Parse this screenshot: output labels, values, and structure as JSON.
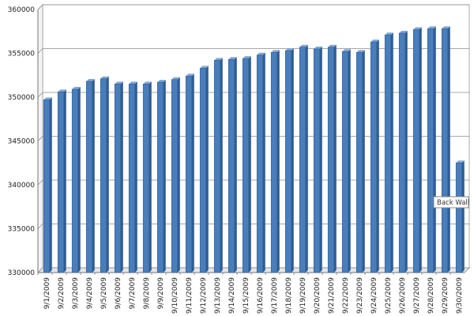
{
  "chart_data": {
    "type": "bar",
    "title": "",
    "xlabel": "",
    "ylabel": "",
    "categories": [
      "9/1/2009",
      "9/2/2009",
      "9/3/2009",
      "9/4/2009",
      "9/5/2009",
      "9/6/2009",
      "9/7/2009",
      "9/8/2009",
      "9/9/2009",
      "9/10/2009",
      "9/11/2009",
      "9/12/2009",
      "9/13/2009",
      "9/14/2009",
      "9/15/2009",
      "9/16/2009",
      "9/17/2009",
      "9/18/2009",
      "9/19/2009",
      "9/20/2009",
      "9/21/2009",
      "9/22/2009",
      "9/23/2009",
      "9/24/2009",
      "9/25/2009",
      "9/26/2009",
      "9/27/2009",
      "9/28/2009",
      "9/29/2009",
      "9/30/2009"
    ],
    "values": [
      349700,
      350600,
      350900,
      351800,
      352100,
      351500,
      351500,
      351500,
      351700,
      352000,
      352400,
      353300,
      354200,
      354300,
      354400,
      354800,
      355100,
      355300,
      355700,
      355500,
      355700,
      355200,
      355100,
      356300,
      357100,
      357300,
      357700,
      357800,
      357800,
      342500
    ],
    "ylim": [
      330000,
      360000
    ],
    "yticks": [
      330000,
      335000,
      340000,
      345000,
      350000,
      355000,
      360000
    ],
    "grid": true,
    "legend": "none",
    "bar_color": "#4a7ebb",
    "bar_edge_color": "#2f5d94",
    "tooltip_text": "Back Wall"
  }
}
